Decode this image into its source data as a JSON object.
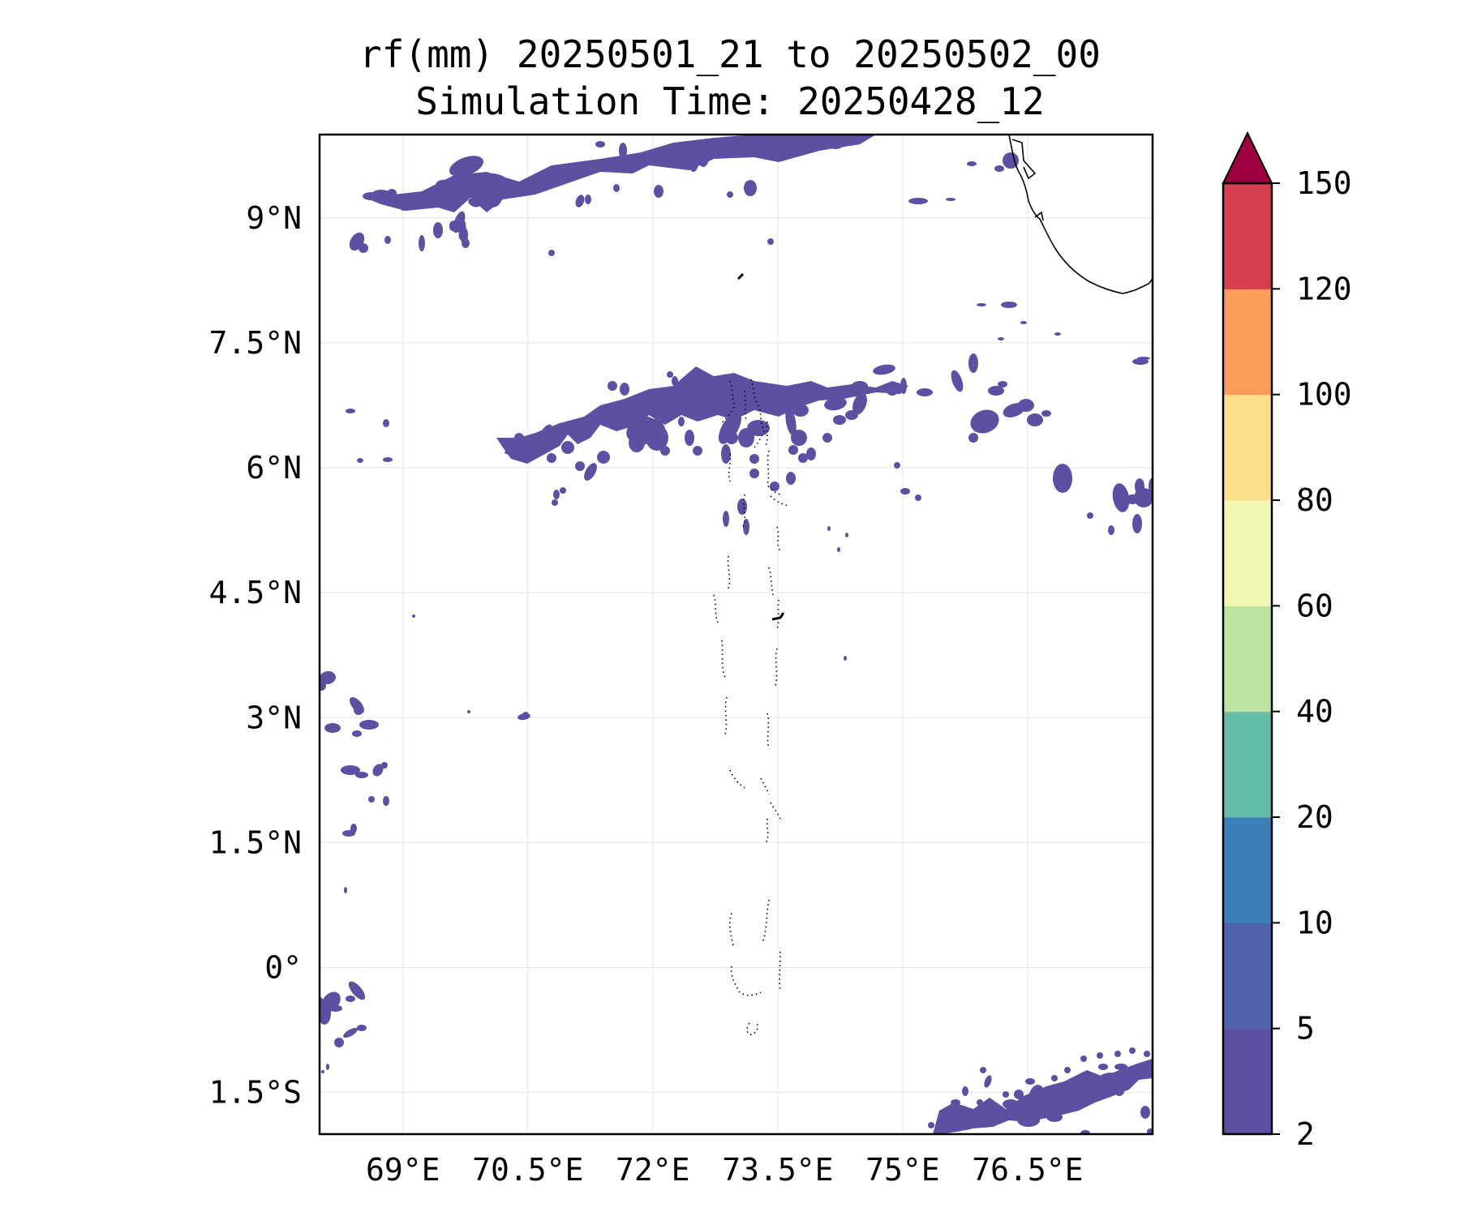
{
  "title": {
    "line1": "rf(mm) 20250501_21 to 20250502_00",
    "line2": "Simulation Time: 20250428_12"
  },
  "map": {
    "extent": {
      "lon": [
        68.0,
        78.0
      ],
      "lat": [
        -2.0,
        10.0
      ]
    },
    "lon_ticks": [
      69,
      70.5,
      72,
      73.5,
      75,
      76.5
    ],
    "lon_tick_labels": [
      "69°E",
      "70.5°E",
      "72°E",
      "73.5°E",
      "75°E",
      "76.5°E"
    ],
    "lat_ticks": [
      9,
      7.5,
      6,
      4.5,
      3,
      1.5,
      0,
      -1.5
    ],
    "lat_tick_labels": [
      "9°N",
      "7.5°N",
      "6°N",
      "4.5°N",
      "3°N",
      "1.5°N",
      "0°",
      "1.5°S"
    ],
    "gridlines": true,
    "coastline_color": "#000000",
    "rain_color_2_5": "#5e4fa2"
  },
  "colorbar": {
    "levels": [
      "2",
      "5",
      "10",
      "20",
      "40",
      "60",
      "80",
      "100",
      "120",
      "150"
    ],
    "colors": [
      "#5e4fa2",
      "#4f62ab",
      "#3a7fb8",
      "#63bda9",
      "#bde3a0",
      "#f2f7b3",
      "#fcdf8a",
      "#f99d59",
      "#d63f4f"
    ],
    "extend_color": "#9e0142",
    "extend": "max"
  }
}
